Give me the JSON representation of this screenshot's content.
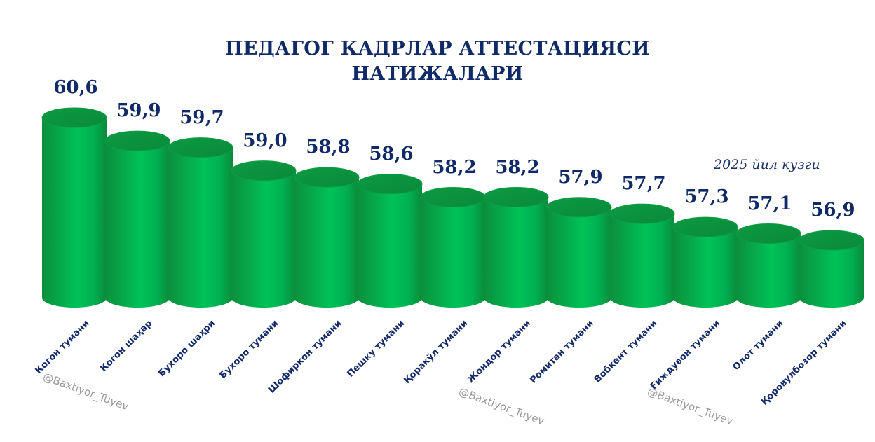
{
  "title_line1": "ПЕДАГОГ КАДРЛАР АТТЕСТАЦИЯСИ",
  "title_line2": "НАТИЖАЛАРИ",
  "subtitle": "2025 йил кузги",
  "watermark": "@Baxtiyor_Tuyev",
  "colors": {
    "bar": "#00b050",
    "bar_dark": "#0a8a3a",
    "text": "#0f2a66"
  },
  "chart_data": {
    "type": "bar",
    "title": "ПЕДАГОГ КАДРЛАР АТТЕСТАЦИЯСИ НАТИЖАЛАРИ",
    "subtitle": "2025 йил кузги",
    "xlabel": "",
    "ylabel": "",
    "grid": false,
    "legend": "none",
    "style": "3d-cylinder",
    "categories": [
      "Когон тумани",
      "Когон шаҳар",
      "Бухоро шаҳри",
      "Бухоро тумани",
      "Шофиркон тумани",
      "Пешку тумани",
      "Қоракўл тумани",
      "Жондор тумани",
      "Ромитан тумани",
      "Вобкент тумани",
      "Ғиждувон тумани",
      "Олот тумани",
      "Қоровулбозор тумани"
    ],
    "values": [
      60.6,
      59.9,
      59.7,
      59.0,
      58.8,
      58.6,
      58.2,
      58.2,
      57.9,
      57.7,
      57.3,
      57.1,
      56.9
    ],
    "value_labels": [
      "60,6",
      "59,9",
      "59,7",
      "59,0",
      "58,8",
      "58,6",
      "58,2",
      "58,2",
      "57,9",
      "57,7",
      "57,3",
      "57,1",
      "56,9"
    ]
  }
}
